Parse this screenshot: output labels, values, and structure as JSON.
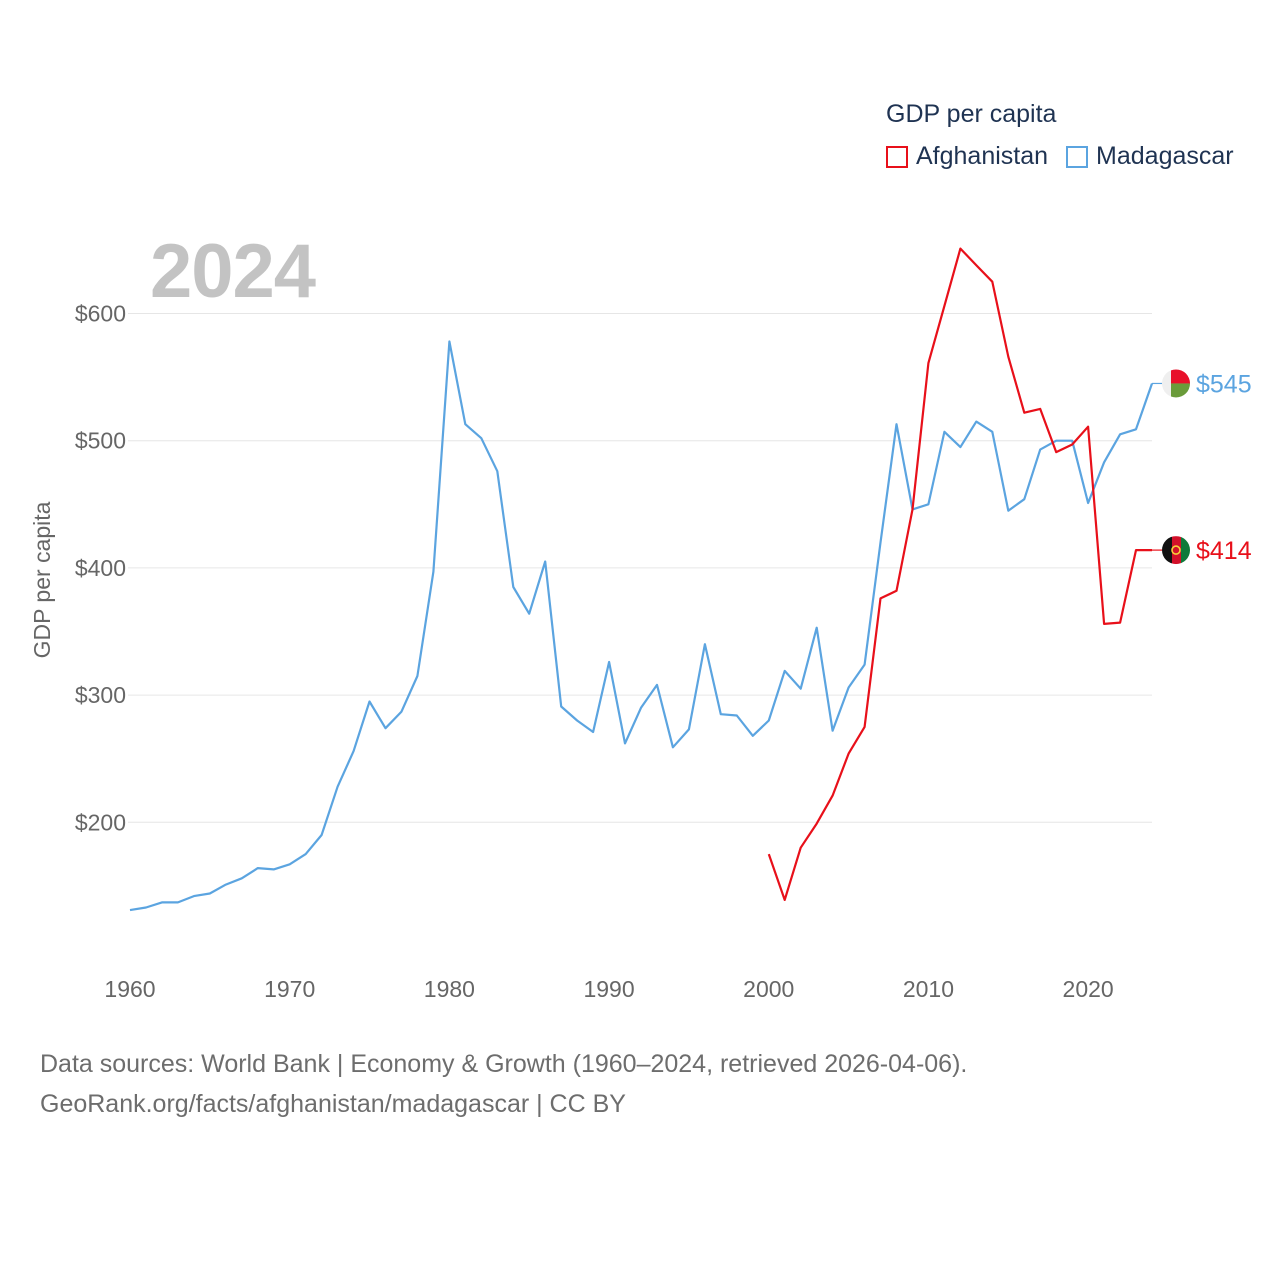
{
  "legend": {
    "title": "GDP per capita",
    "items": [
      {
        "name": "Afghanistan",
        "color": "#e8101a"
      },
      {
        "name": "Madagascar",
        "color": "#5ba4e0"
      }
    ]
  },
  "current_year": "2024",
  "source": {
    "line1": "Data sources: World Bank | Economy & Growth (1960–2024, retrieved 2026-04-06).",
    "line2": "GeoRank.org/facts/afghanistan/madagascar | CC BY"
  },
  "chart_data": {
    "type": "line",
    "title": "GDP per capita",
    "xlabel": "",
    "ylabel": "GDP per capita",
    "xlim": [
      1960,
      2024
    ],
    "ylim": [
      105,
      650
    ],
    "x_ticks": [
      1960,
      1970,
      1980,
      1990,
      2000,
      2010,
      2020
    ],
    "y_ticks": [
      200,
      300,
      400,
      500,
      600
    ],
    "y_tick_labels": [
      "$200",
      "$300",
      "$400",
      "$500",
      "$600"
    ],
    "grid": true,
    "series": [
      {
        "name": "Madagascar",
        "color": "#5ba4e0",
        "end_label": "$545",
        "x": [
          1960,
          1961,
          1962,
          1963,
          1964,
          1965,
          1966,
          1967,
          1968,
          1969,
          1970,
          1971,
          1972,
          1973,
          1974,
          1975,
          1976,
          1977,
          1978,
          1979,
          1980,
          1981,
          1982,
          1983,
          1984,
          1985,
          1986,
          1987,
          1988,
          1989,
          1990,
          1991,
          1992,
          1993,
          1994,
          1995,
          1996,
          1997,
          1998,
          1999,
          2000,
          2001,
          2002,
          2003,
          2004,
          2005,
          2006,
          2007,
          2008,
          2009,
          2010,
          2011,
          2012,
          2013,
          2014,
          2015,
          2016,
          2017,
          2018,
          2019,
          2020,
          2021,
          2022,
          2023,
          2024
        ],
        "values": [
          131,
          133,
          137,
          137,
          142,
          144,
          151,
          156,
          164,
          163,
          167,
          175,
          190,
          228,
          256,
          295,
          274,
          287,
          315,
          397,
          578,
          513,
          502,
          476,
          385,
          364,
          405,
          291,
          280,
          271,
          326,
          262,
          290,
          308,
          259,
          273,
          340,
          285,
          284,
          268,
          280,
          319,
          305,
          353,
          272,
          306,
          324,
          420,
          513,
          446,
          450,
          507,
          495,
          515,
          507,
          445,
          454,
          493,
          500,
          500,
          451,
          483,
          505,
          509,
          545
        ]
      },
      {
        "name": "Afghanistan",
        "color": "#e8101a",
        "end_label": "$414",
        "x": [
          2000,
          2001,
          2002,
          2003,
          2004,
          2005,
          2006,
          2007,
          2008,
          2009,
          2010,
          2011,
          2012,
          2013,
          2014,
          2015,
          2016,
          2017,
          2018,
          2019,
          2020,
          2021,
          2022,
          2023,
          2024
        ],
        "values": [
          175,
          139,
          180,
          199,
          221,
          254,
          275,
          376,
          382,
          446,
          561,
          606,
          651,
          638,
          625,
          566,
          522,
          525,
          491,
          497,
          511,
          356,
          357,
          414,
          414
        ]
      }
    ]
  }
}
